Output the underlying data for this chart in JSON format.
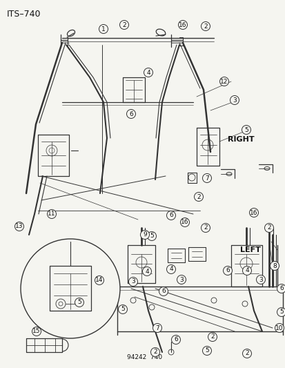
{
  "title": "ITS–740",
  "diagram_code": "94242  740",
  "bg_color": "#f5f5f0",
  "text_color": "#111111",
  "line_color": "#333333",
  "right_label": "RIGHT",
  "left_label": "LEFT",
  "figsize": [
    4.14,
    5.33
  ],
  "dpi": 100,
  "title_fontsize": 9,
  "label_fontsize": 8,
  "part_fontsize": 6.5,
  "circle_r": 6.5
}
